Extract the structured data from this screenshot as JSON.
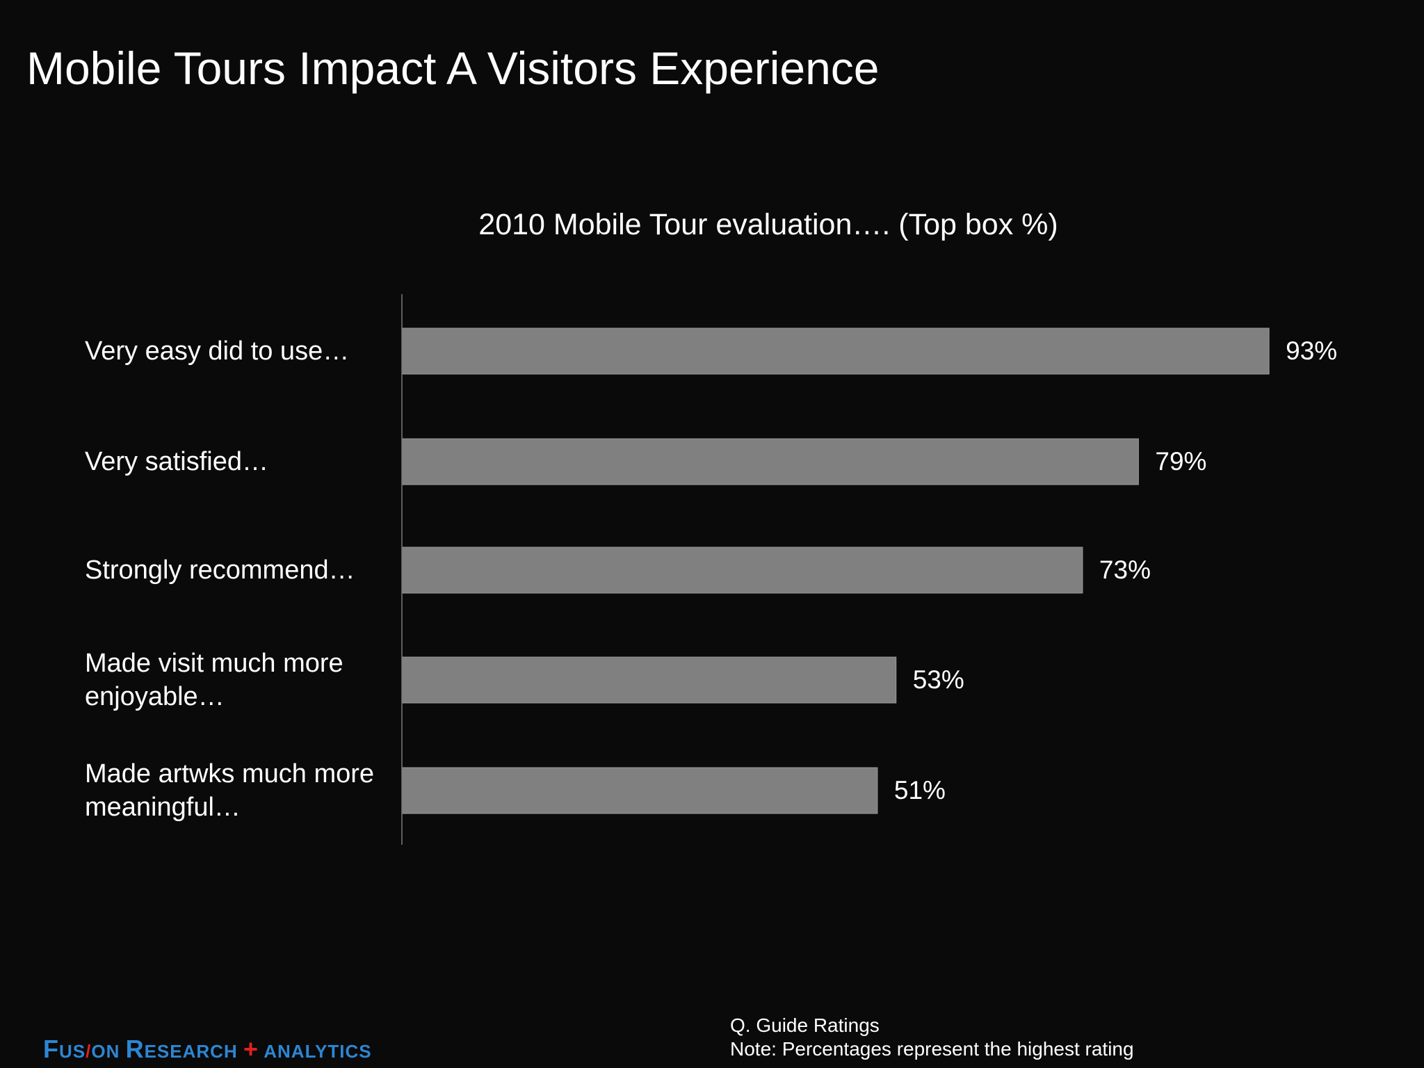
{
  "slide": {
    "title": "Mobile Tours Impact A Visitors Experience"
  },
  "chart_data": {
    "type": "bar",
    "orientation": "horizontal",
    "title": "2010 Mobile Tour evaluation…. (Top box %)",
    "categories": [
      "Very easy did to use…",
      "Very satisfied…",
      "Strongly recommend…",
      "Made visit much more enjoyable…",
      "Made artwks much more meaningful…"
    ],
    "category_lines": [
      [
        "Very easy did to use…"
      ],
      [
        "Very satisfied…"
      ],
      [
        "Strongly recommend…"
      ],
      [
        "Made visit much more",
        "enjoyable…"
      ],
      [
        "Made artwks much more",
        "meaningful…"
      ]
    ],
    "values": [
      93,
      79,
      73,
      53,
      51
    ],
    "value_labels": [
      "93%",
      "79%",
      "73%",
      "53%",
      "51%"
    ],
    "xlim": [
      0,
      100
    ],
    "grid": false,
    "legend": "none",
    "bar_color": "#808080",
    "axis_color": "#7a7a7a"
  },
  "footer": {
    "question": "Q. Guide Ratings",
    "note": "Note: Percentages represent the highest rating"
  },
  "brand": {
    "logo_text": "FUSION RESEARCH + ANALYTICS",
    "parts": {
      "f": "F",
      "us": "US",
      "slash": "/",
      "on": "ON ",
      "r": "R",
      "esearch": "ESEARCH ",
      "plus": "+",
      "analytics": " ANALYTICS"
    },
    "color": "#2d86d4",
    "accent_color": "#e02020"
  }
}
